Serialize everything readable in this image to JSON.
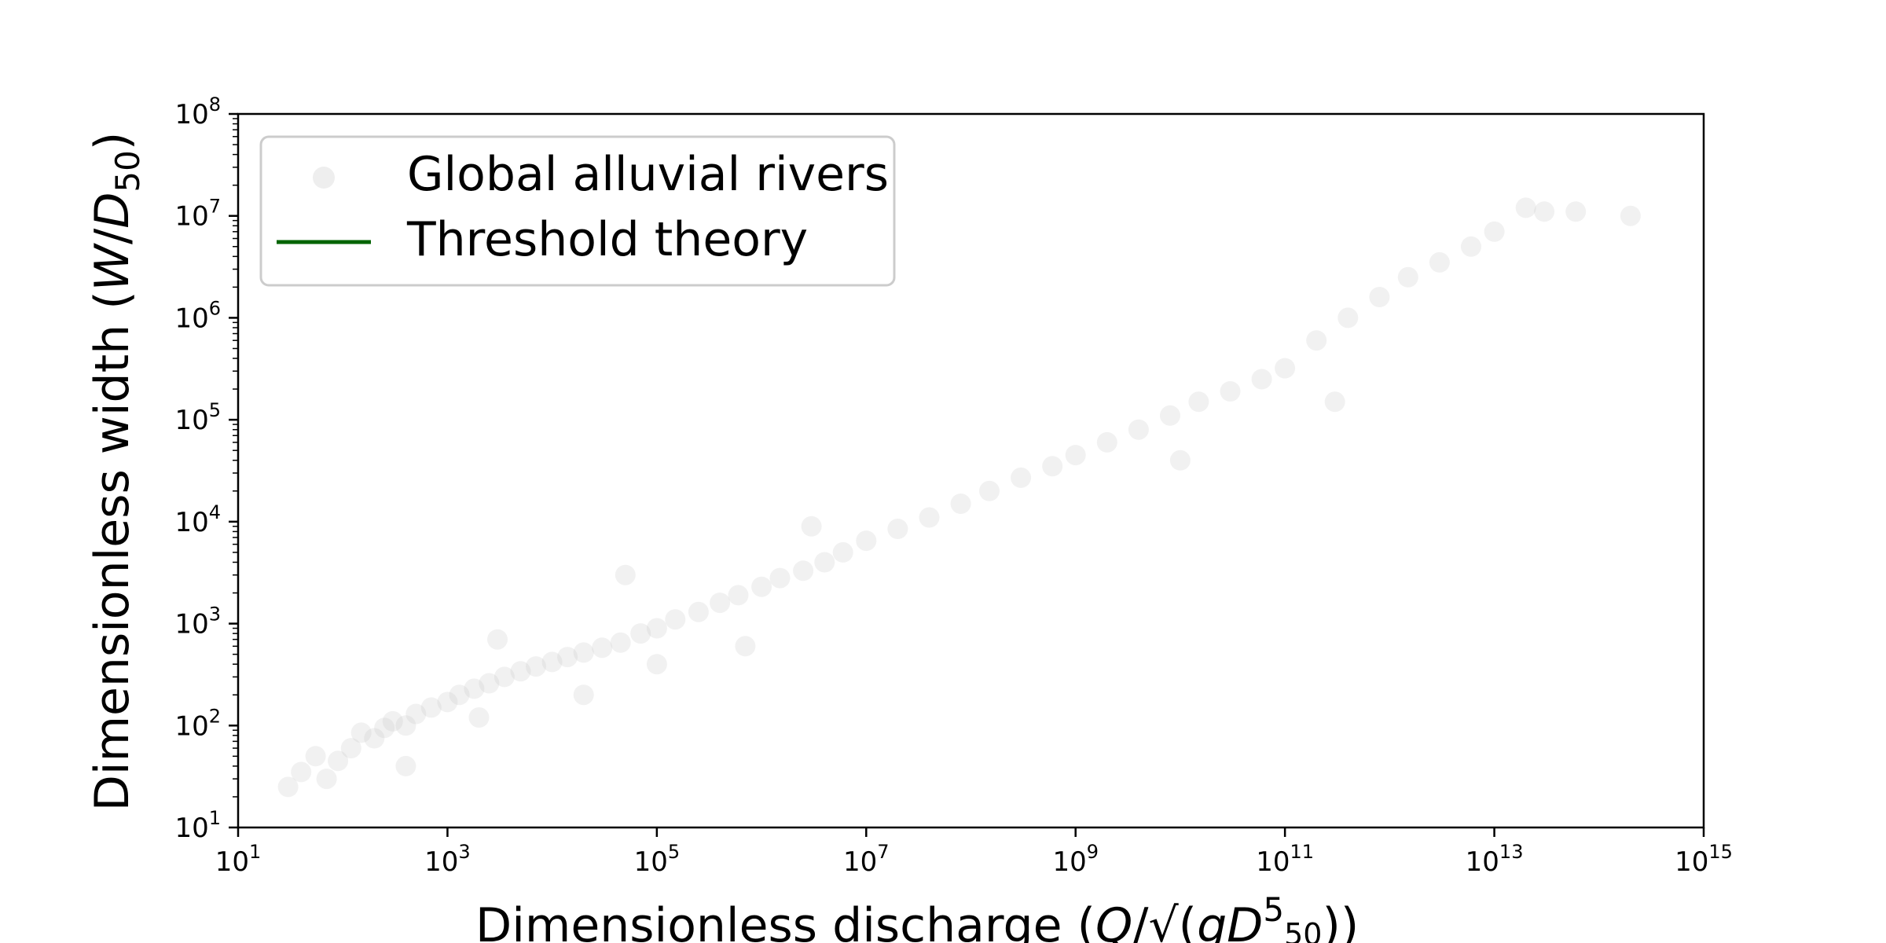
{
  "chart_data": {
    "type": "scatter",
    "x_scale": "log",
    "y_scale": "log",
    "xlim": [
      10,
      1000000000000000.0
    ],
    "ylim": [
      10,
      100000000.0
    ],
    "xlabel": "Dimensionless discharge (Q/√(gD50^5))",
    "ylabel": "Dimensionless width (W/D50)",
    "x_ticks": [
      {
        "base": "10",
        "exp": "1",
        "value": 10.0
      },
      {
        "base": "10",
        "exp": "3",
        "value": 1000.0
      },
      {
        "base": "10",
        "exp": "5",
        "value": 100000.0
      },
      {
        "base": "10",
        "exp": "7",
        "value": 10000000.0
      },
      {
        "base": "10",
        "exp": "9",
        "value": 1000000000.0
      },
      {
        "base": "10",
        "exp": "11",
        "value": 100000000000.0
      },
      {
        "base": "10",
        "exp": "13",
        "value": 10000000000000.0
      },
      {
        "base": "10",
        "exp": "15",
        "value": 1000000000000000.0
      }
    ],
    "y_ticks": [
      {
        "base": "10",
        "exp": "1",
        "value": 10.0
      },
      {
        "base": "10",
        "exp": "2",
        "value": 100.0
      },
      {
        "base": "10",
        "exp": "3",
        "value": 1000.0
      },
      {
        "base": "10",
        "exp": "4",
        "value": 10000.0
      },
      {
        "base": "10",
        "exp": "5",
        "value": 100000.0
      },
      {
        "base": "10",
        "exp": "6",
        "value": 1000000.0
      },
      {
        "base": "10",
        "exp": "7",
        "value": 10000000.0
      },
      {
        "base": "10",
        "exp": "8",
        "value": 100000000.0
      }
    ],
    "legend": {
      "position": "upper-left",
      "entries": [
        {
          "label": "Global alluvial rivers",
          "marker": "circle",
          "color": "#bdbdbd"
        },
        {
          "label": "Threshold theory",
          "marker": "line",
          "color": "#006400"
        }
      ]
    },
    "series": [
      {
        "name": "Global alluvial rivers",
        "kind": "scatter",
        "color": "#bdbdbd",
        "opacity": 0.22,
        "points": [
          [
            30,
            25
          ],
          [
            40,
            35
          ],
          [
            55,
            50
          ],
          [
            70,
            30
          ],
          [
            90,
            45
          ],
          [
            120,
            60
          ],
          [
            150,
            85
          ],
          [
            200,
            75
          ],
          [
            250,
            95
          ],
          [
            300,
            110
          ],
          [
            400,
            100
          ],
          [
            500,
            130
          ],
          [
            700,
            150
          ],
          [
            1000,
            170
          ],
          [
            1300,
            200
          ],
          [
            1800,
            230
          ],
          [
            2500,
            260
          ],
          [
            3500,
            300
          ],
          [
            5000,
            340
          ],
          [
            7000,
            380
          ],
          [
            10000,
            420
          ],
          [
            14000,
            470
          ],
          [
            20000,
            520
          ],
          [
            30000,
            580
          ],
          [
            45000,
            650
          ],
          [
            70000,
            800
          ],
          [
            100000,
            900
          ],
          [
            150000,
            1100
          ],
          [
            250000,
            1300
          ],
          [
            400000,
            1600
          ],
          [
            600000,
            1900
          ],
          [
            1000000,
            2300
          ],
          [
            1500000,
            2800
          ],
          [
            2500000,
            3300
          ],
          [
            4000000,
            4000
          ],
          [
            6000000,
            5000
          ],
          [
            10000000.0,
            6500
          ],
          [
            20000000.0,
            8500
          ],
          [
            40000000.0,
            11000
          ],
          [
            80000000.0,
            15000
          ],
          [
            150000000.0,
            20000
          ],
          [
            300000000.0,
            27000
          ],
          [
            600000000.0,
            35000
          ],
          [
            1000000000.0,
            45000
          ],
          [
            2000000000.0,
            60000
          ],
          [
            4000000000.0,
            80000
          ],
          [
            8000000000.0,
            110000
          ],
          [
            15000000000.0,
            150000
          ],
          [
            30000000000.0,
            190000
          ],
          [
            60000000000.0,
            250000
          ],
          [
            100000000000.0,
            320000
          ],
          [
            200000000000.0,
            600000
          ],
          [
            400000000000.0,
            1000000
          ],
          [
            800000000000.0,
            1600000
          ],
          [
            1500000000000.0,
            2500000
          ],
          [
            3000000000000.0,
            3500000
          ],
          [
            6000000000000.0,
            5000000
          ],
          [
            10000000000000.0,
            7000000
          ],
          [
            20000000000000.0,
            12000000.0
          ],
          [
            30000000000000.0,
            11000000.0
          ],
          [
            60000000000000.0,
            11000000.0
          ],
          [
            200000000000000.0,
            10000000.0
          ],
          [
            400,
            40
          ],
          [
            2000,
            120
          ],
          [
            3000,
            700
          ],
          [
            20000,
            200
          ],
          [
            50000,
            3000
          ],
          [
            100000,
            400
          ],
          [
            700000,
            600
          ],
          [
            3000000.0,
            9000
          ],
          [
            10000000000.0,
            40000
          ],
          [
            300000000000.0,
            150000
          ]
        ]
      },
      {
        "name": "Threshold theory",
        "kind": "line",
        "color": "#006400",
        "points": []
      }
    ]
  }
}
